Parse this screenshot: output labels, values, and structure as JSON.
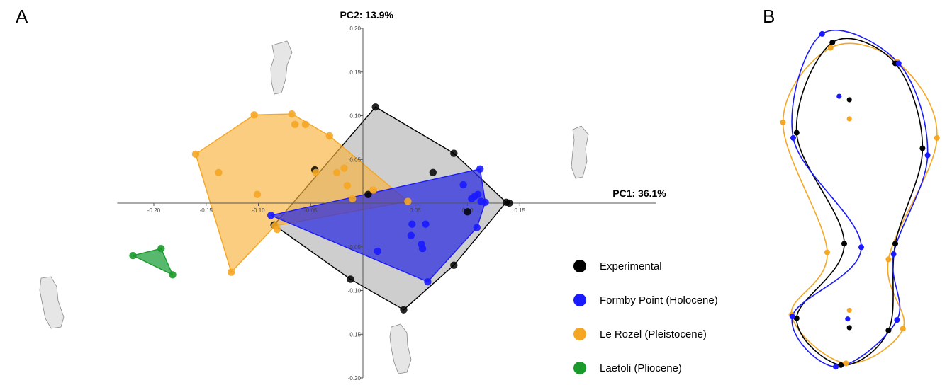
{
  "panel_labels": [
    "A",
    "B"
  ],
  "colors": {
    "experimental": "#000000",
    "formby": "#1a1aff",
    "lerozel": "#f5a623",
    "laetoli": "#1a9a2a",
    "experimental_fill": "#9e9e9e",
    "formby_fill": "#2a2ae0",
    "lerozel_fill": "#f7b23c",
    "laetoli_fill": "#2ea84a"
  },
  "chart_data": [
    {
      "type": "scatter",
      "title": "",
      "xlabel": "PC1: 36.1%",
      "ylabel": "PC2: 13.9%",
      "xlim": [
        -0.235,
        0.28
      ],
      "ylim": [
        -0.2,
        0.2
      ],
      "x_ticks": [
        -0.2,
        -0.15,
        -0.1,
        -0.05,
        0.05,
        0.1,
        0.15
      ],
      "x_tick_labels": [
        "-0.20",
        "-0.15",
        "-0.10",
        "-0.05",
        "0.05",
        "0.10",
        "0.15"
      ],
      "y_ticks": [
        0.2,
        0.15,
        0.1,
        0.05,
        -0.05,
        -0.1,
        -0.15,
        -0.2
      ],
      "y_tick_labels": [
        "0.20",
        "0.15",
        "0.10",
        "0.05",
        "-0.05",
        "-0.10",
        "-0.15",
        "-0.20"
      ],
      "grid": false,
      "legend_position": "bottom-right",
      "series": [
        {
          "name": "Experimental",
          "color_key": "experimental",
          "hull": [
            [
              0.012,
              0.11
            ],
            [
              0.087,
              0.057
            ],
            [
              0.137,
              0.001
            ],
            [
              0.087,
              -0.071
            ],
            [
              0.039,
              -0.122
            ],
            [
              -0.012,
              -0.087
            ],
            [
              -0.085,
              -0.025
            ]
          ],
          "points": [
            [
              0.012,
              0.11
            ],
            [
              0.087,
              0.057
            ],
            [
              0.137,
              0.001
            ],
            [
              0.087,
              -0.071
            ],
            [
              0.039,
              -0.122
            ],
            [
              -0.012,
              -0.087
            ],
            [
              -0.085,
              -0.025
            ],
            [
              0.067,
              0.035
            ],
            [
              -0.046,
              0.038
            ],
            [
              0.005,
              0.01
            ],
            [
              0.14,
              0.0
            ],
            [
              0.1,
              -0.01
            ]
          ]
        },
        {
          "name": "Formby Point (Holocene)",
          "color_key": "formby",
          "hull": [
            [
              0.112,
              0.039
            ],
            [
              0.117,
              0.001
            ],
            [
              0.109,
              -0.028
            ],
            [
              0.062,
              -0.09
            ],
            [
              -0.088,
              -0.014
            ]
          ],
          "points": [
            [
              0.112,
              0.039
            ],
            [
              0.117,
              0.001
            ],
            [
              0.109,
              -0.028
            ],
            [
              0.062,
              -0.09
            ],
            [
              -0.088,
              -0.014
            ],
            [
              0.096,
              0.021
            ],
            [
              0.104,
              0.005
            ],
            [
              0.107,
              0.008
            ],
            [
              0.11,
              0.01
            ],
            [
              0.06,
              -0.024
            ],
            [
              0.047,
              -0.024
            ],
            [
              0.046,
              -0.037
            ],
            [
              0.056,
              -0.047
            ],
            [
              0.014,
              -0.055
            ],
            [
              0.057,
              -0.052
            ],
            [
              0.113,
              0.002
            ]
          ]
        },
        {
          "name": "Le Rozel (Pleistocene)",
          "color_key": "lerozel",
          "hull": [
            [
              -0.104,
              0.101
            ],
            [
              -0.068,
              0.102
            ],
            [
              -0.032,
              0.077
            ],
            [
              0.043,
              0.002
            ],
            [
              -0.084,
              -0.026
            ],
            [
              -0.126,
              -0.079
            ],
            [
              -0.16,
              0.056
            ]
          ],
          "points": [
            [
              -0.104,
              0.101
            ],
            [
              -0.068,
              0.102
            ],
            [
              -0.032,
              0.077
            ],
            [
              0.043,
              0.002
            ],
            [
              -0.084,
              -0.026
            ],
            [
              -0.126,
              -0.079
            ],
            [
              -0.16,
              0.056
            ],
            [
              -0.138,
              0.035
            ],
            [
              -0.065,
              0.09
            ],
            [
              -0.055,
              0.09
            ],
            [
              -0.045,
              0.035
            ],
            [
              -0.025,
              0.035
            ],
            [
              -0.015,
              0.02
            ],
            [
              -0.101,
              0.01
            ],
            [
              -0.082,
              -0.03
            ],
            [
              -0.018,
              0.04
            ],
            [
              -0.01,
              0.005
            ],
            [
              0.01,
              0.015
            ]
          ]
        },
        {
          "name": "Laetoli (Pliocene)",
          "color_key": "laetoli",
          "hull": [
            [
              -0.22,
              -0.06
            ],
            [
              -0.193,
              -0.052
            ],
            [
              -0.182,
              -0.082
            ]
          ],
          "points": [
            [
              -0.22,
              -0.06
            ],
            [
              -0.193,
              -0.052
            ],
            [
              -0.182,
              -0.082
            ]
          ]
        }
      ]
    },
    {
      "type": "scatter",
      "title": "",
      "subtype": "landmark-outline",
      "xlim": [
        0,
        1
      ],
      "ylim": [
        0,
        1
      ],
      "series": [
        {
          "name": "Experimental",
          "color_key": "experimental",
          "outline": [
            [
              0.33,
              0.965
            ],
            [
              0.7,
              0.905
            ],
            [
              0.86,
              0.66
            ],
            [
              0.7,
              0.385
            ],
            [
              0.66,
              0.135
            ],
            [
              0.38,
              0.035
            ],
            [
              0.12,
              0.17
            ],
            [
              0.4,
              0.385
            ],
            [
              0.12,
              0.705
            ],
            [
              0.33,
              0.965
            ]
          ],
          "landmarks": [
            [
              0.33,
              0.965
            ],
            [
              0.7,
              0.905
            ],
            [
              0.86,
              0.66
            ],
            [
              0.7,
              0.385
            ],
            [
              0.66,
              0.135
            ],
            [
              0.38,
              0.035
            ],
            [
              0.12,
              0.17
            ],
            [
              0.4,
              0.385
            ],
            [
              0.12,
              0.705
            ]
          ],
          "inner": [
            [
              0.43,
              0.8
            ],
            [
              0.43,
              0.143
            ]
          ]
        },
        {
          "name": "Formby Point (Holocene)",
          "color_key": "formby",
          "outline": [
            [
              0.27,
              0.99
            ],
            [
              0.72,
              0.905
            ],
            [
              0.89,
              0.64
            ],
            [
              0.69,
              0.355
            ],
            [
              0.71,
              0.165
            ],
            [
              0.35,
              0.03
            ],
            [
              0.095,
              0.175
            ],
            [
              0.5,
              0.375
            ],
            [
              0.1,
              0.69
            ],
            [
              0.27,
              0.99
            ]
          ],
          "landmarks": [
            [
              0.27,
              0.99
            ],
            [
              0.72,
              0.905
            ],
            [
              0.89,
              0.64
            ],
            [
              0.69,
              0.355
            ],
            [
              0.71,
              0.165
            ],
            [
              0.35,
              0.03
            ],
            [
              0.095,
              0.175
            ],
            [
              0.5,
              0.375
            ],
            [
              0.1,
              0.69
            ]
          ],
          "inner": [
            [
              0.37,
              0.81
            ],
            [
              0.42,
              0.168
            ]
          ]
        },
        {
          "name": "Le Rozel (Pleistocene)",
          "color_key": "lerozel",
          "outline": [
            [
              0.32,
              0.95
            ],
            [
              0.71,
              0.91
            ],
            [
              0.945,
              0.69
            ],
            [
              0.66,
              0.34
            ],
            [
              0.745,
              0.14
            ],
            [
              0.41,
              0.04
            ],
            [
              0.09,
              0.18
            ],
            [
              0.3,
              0.36
            ],
            [
              0.04,
              0.735
            ],
            [
              0.32,
              0.95
            ]
          ],
          "landmarks": [
            [
              0.32,
              0.95
            ],
            [
              0.71,
              0.91
            ],
            [
              0.945,
              0.69
            ],
            [
              0.66,
              0.34
            ],
            [
              0.745,
              0.14
            ],
            [
              0.41,
              0.04
            ],
            [
              0.09,
              0.18
            ],
            [
              0.3,
              0.36
            ],
            [
              0.04,
              0.735
            ]
          ],
          "inner": [
            [
              0.43,
              0.745
            ],
            [
              0.43,
              0.193
            ]
          ]
        }
      ]
    }
  ],
  "legend": [
    {
      "label": "Experimental",
      "color_key": "experimental"
    },
    {
      "label": "Formby Point (Holocene)",
      "color_key": "formby"
    },
    {
      "label": "Le Rozel (Pleistocene)",
      "color_key": "lerozel"
    },
    {
      "label": "Laetoli (Pliocene)",
      "color_key": "laetoli"
    }
  ],
  "shape_icons": [
    "footprint-outline-top",
    "footprint-outline-right",
    "footprint-outline-left",
    "footprint-outline-bottom"
  ]
}
